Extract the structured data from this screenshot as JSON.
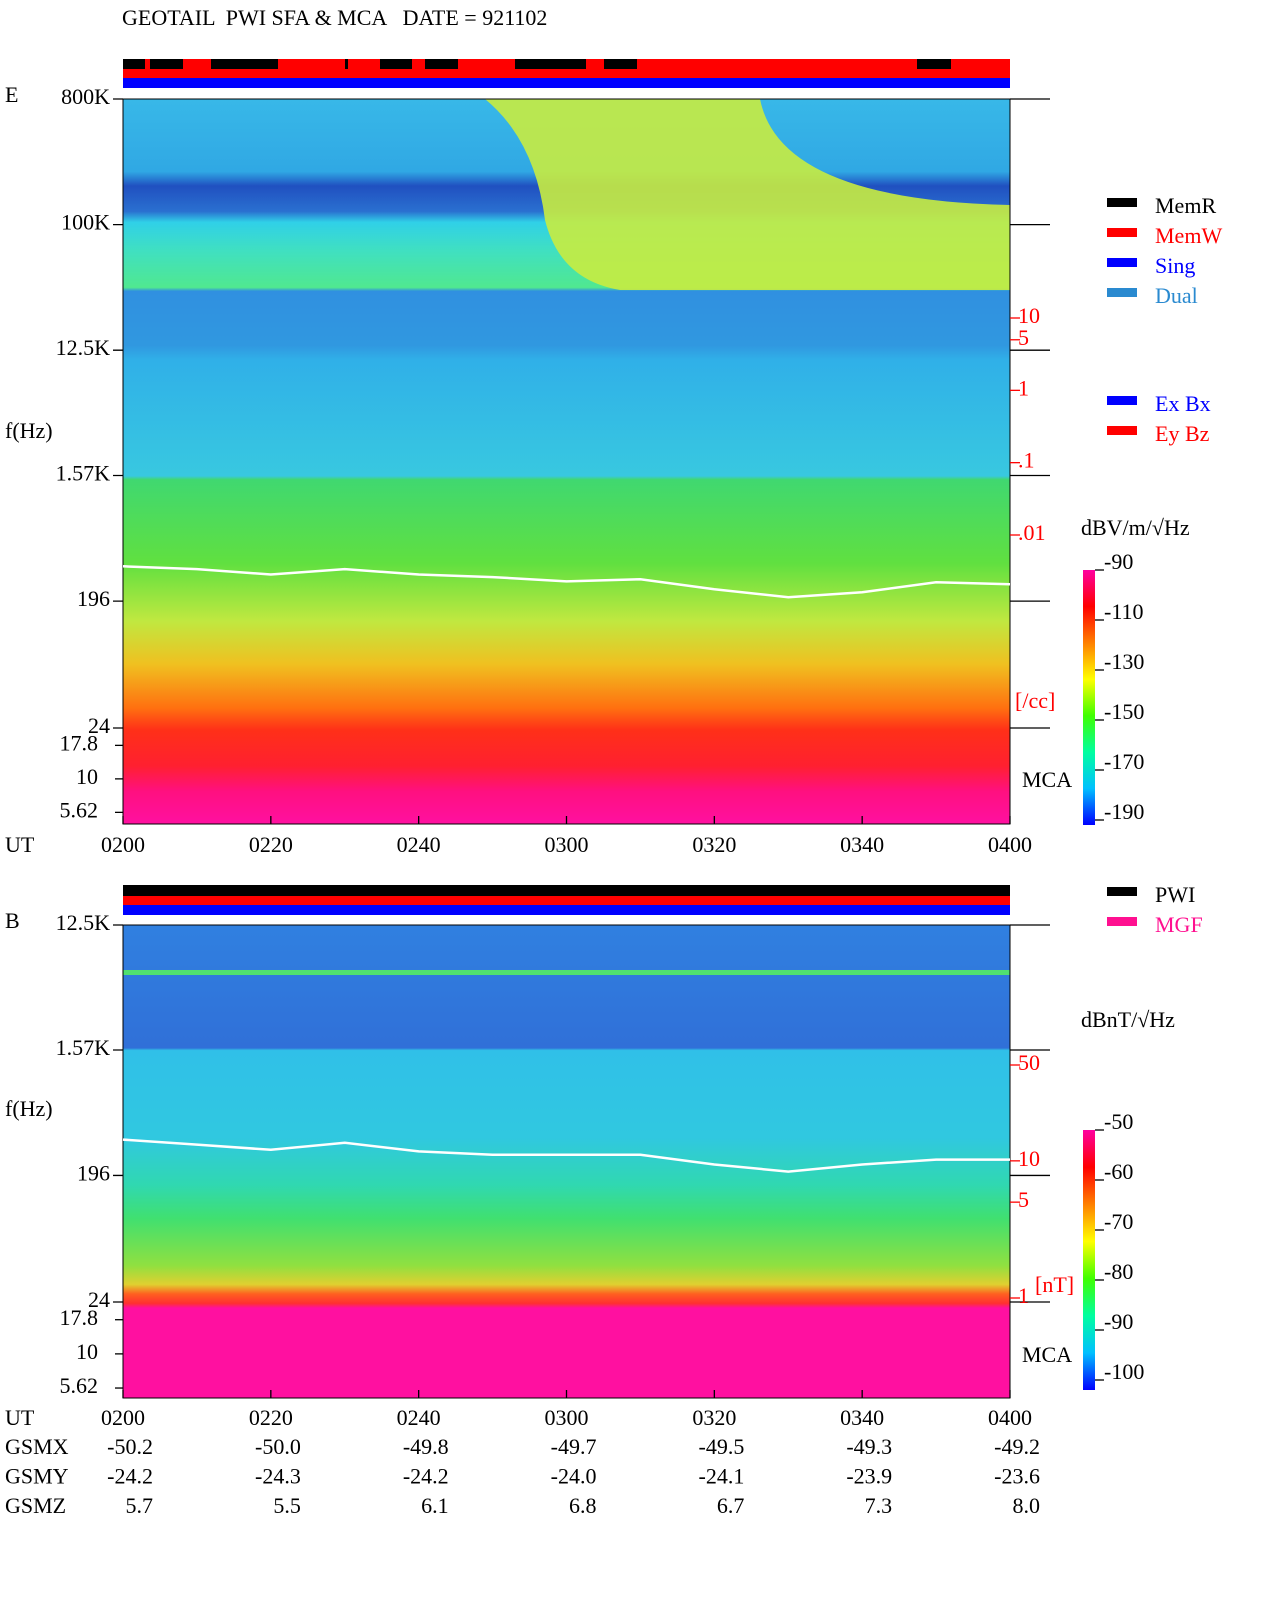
{
  "title": "GEOTAIL  PWI SFA & MCA   DATE = 921102",
  "chart_data": [
    {
      "type": "spectrogram",
      "panel_label": "E",
      "ylabel": "f(Hz)",
      "xlabel": "UT",
      "xlim": [
        120,
        240
      ],
      "xticks": [
        {
          "value": 120,
          "label": "0200"
        },
        {
          "value": 140,
          "label": "0220"
        },
        {
          "value": 160,
          "label": "0240"
        },
        {
          "value": 180,
          "label": "0300"
        },
        {
          "value": 200,
          "label": "0320"
        },
        {
          "value": 220,
          "label": "0340"
        },
        {
          "value": 240,
          "label": "0400"
        }
      ],
      "log_y": true,
      "ylim": [
        24,
        800000
      ],
      "yticks": [
        {
          "value": 800000,
          "label": "800K"
        },
        {
          "value": 100000,
          "label": "100K"
        },
        {
          "value": 12500,
          "label": "12.5K"
        },
        {
          "value": 1570,
          "label": "1.57K"
        },
        196,
        24
      ],
      "mca_label": "MCA",
      "mca_ylim": [
        4.6,
        24
      ],
      "mca_yticks": [
        17.8,
        10,
        5.62
      ],
      "y2_label": "[/cc]",
      "y2_color": "#ff0000",
      "y2lim": [
        0.01,
        10
      ],
      "y2ticks": [
        10,
        5,
        1,
        {
          "value": 0.1,
          "label": ".1"
        },
        {
          "value": 0.01,
          "label": ".01"
        }
      ],
      "series": [
        {
          "color": "#ffffff",
          "x": [
            120,
            130,
            140,
            150,
            160,
            170,
            180,
            190,
            200,
            210,
            220,
            230,
            240
          ],
          "values": [
            349,
            333,
            305,
            333,
            305,
            292,
            272,
            282,
            239,
            209,
            227,
            268,
            259
          ]
        }
      ],
      "colorbar": {
        "label": "dBV/m/√Hz",
        "zlim": [
          -192,
          -90
        ],
        "zticks": [
          -90,
          -110,
          -130,
          -150,
          -170,
          -190
        ],
        "colors": [
          "#0000ff",
          "#00c0ff",
          "#00ffa0",
          "#40ff00",
          "#ffff00",
          "#ff8000",
          "#ff0000",
          "#ff00a0"
        ]
      },
      "legend": [
        {
          "name": "MemR",
          "color": "#000000"
        },
        {
          "name": "MemW",
          "color": "#ff0000"
        },
        {
          "name": "Sing",
          "color": "#0000ff"
        },
        {
          "name": "Dual",
          "color": "#2a8ad0"
        }
      ],
      "legend2": [
        {
          "name": "Ex Bx",
          "color": "#0000ff"
        },
        {
          "name": "Ey Bz",
          "color": "#ff0000"
        }
      ]
    },
    {
      "type": "spectrogram",
      "panel_label": "B",
      "ylabel": "f(Hz)",
      "xlabel": "UT",
      "xlim": [
        120,
        240
      ],
      "xticks": [
        {
          "value": 120,
          "label": "0200"
        },
        {
          "value": 140,
          "label": "0220"
        },
        {
          "value": 160,
          "label": "0240"
        },
        {
          "value": 180,
          "label": "0300"
        },
        {
          "value": 200,
          "label": "0320"
        },
        {
          "value": 220,
          "label": "0340"
        },
        {
          "value": 240,
          "label": "0400"
        }
      ],
      "log_y": true,
      "ylim": [
        24,
        12500
      ],
      "yticks": [
        {
          "value": 12500,
          "label": "12.5K"
        },
        {
          "value": 1570,
          "label": "1.57K"
        },
        196,
        24
      ],
      "mca_label": "MCA",
      "mca_ylim": [
        4.75,
        24
      ],
      "mca_yticks": [
        17.8,
        10,
        5.62
      ],
      "y2_label": "[nT]",
      "y2_color": "#ff0000",
      "y2lim": [
        1,
        50
      ],
      "y2ticks": [
        50,
        10,
        5,
        1
      ],
      "series": [
        {
          "color": "#ffffff",
          "x": [
            120,
            130,
            140,
            150,
            160,
            170,
            180,
            190,
            200,
            210,
            220,
            230,
            240
          ],
          "values": [
            355,
            327,
            300,
            337,
            292,
            276,
            276,
            276,
            235,
            209,
            235,
            255,
            255
          ]
        }
      ],
      "colorbar": {
        "label": "dBnT/√Hz",
        "zlim": [
          -102,
          -50
        ],
        "zticks": [
          -50,
          -60,
          -70,
          -80,
          -90,
          -100
        ],
        "colors": [
          "#0000ff",
          "#00c0ff",
          "#00ffa0",
          "#40ff00",
          "#ffff00",
          "#ff8000",
          "#ff0000",
          "#ff00a0"
        ]
      },
      "legend": [
        {
          "name": "PWI",
          "color": "#000000"
        },
        {
          "name": "MGF",
          "color": "#ff1090"
        }
      ]
    }
  ],
  "orbit": {
    "rows": [
      {
        "label": "GSMX",
        "values": [
          "-50.2",
          "-50.0",
          "-49.8",
          "-49.7",
          "-49.5",
          "-49.3",
          "-49.2"
        ]
      },
      {
        "label": "GSMY",
        "values": [
          "-24.2",
          "-24.3",
          "-24.2",
          "-24.0",
          "-24.1",
          "-23.9",
          "-23.6"
        ]
      },
      {
        "label": "GSMZ",
        "values": [
          "5.7",
          "5.5",
          "6.1",
          "6.8",
          "6.7",
          "7.3",
          "8.0"
        ]
      }
    ]
  }
}
